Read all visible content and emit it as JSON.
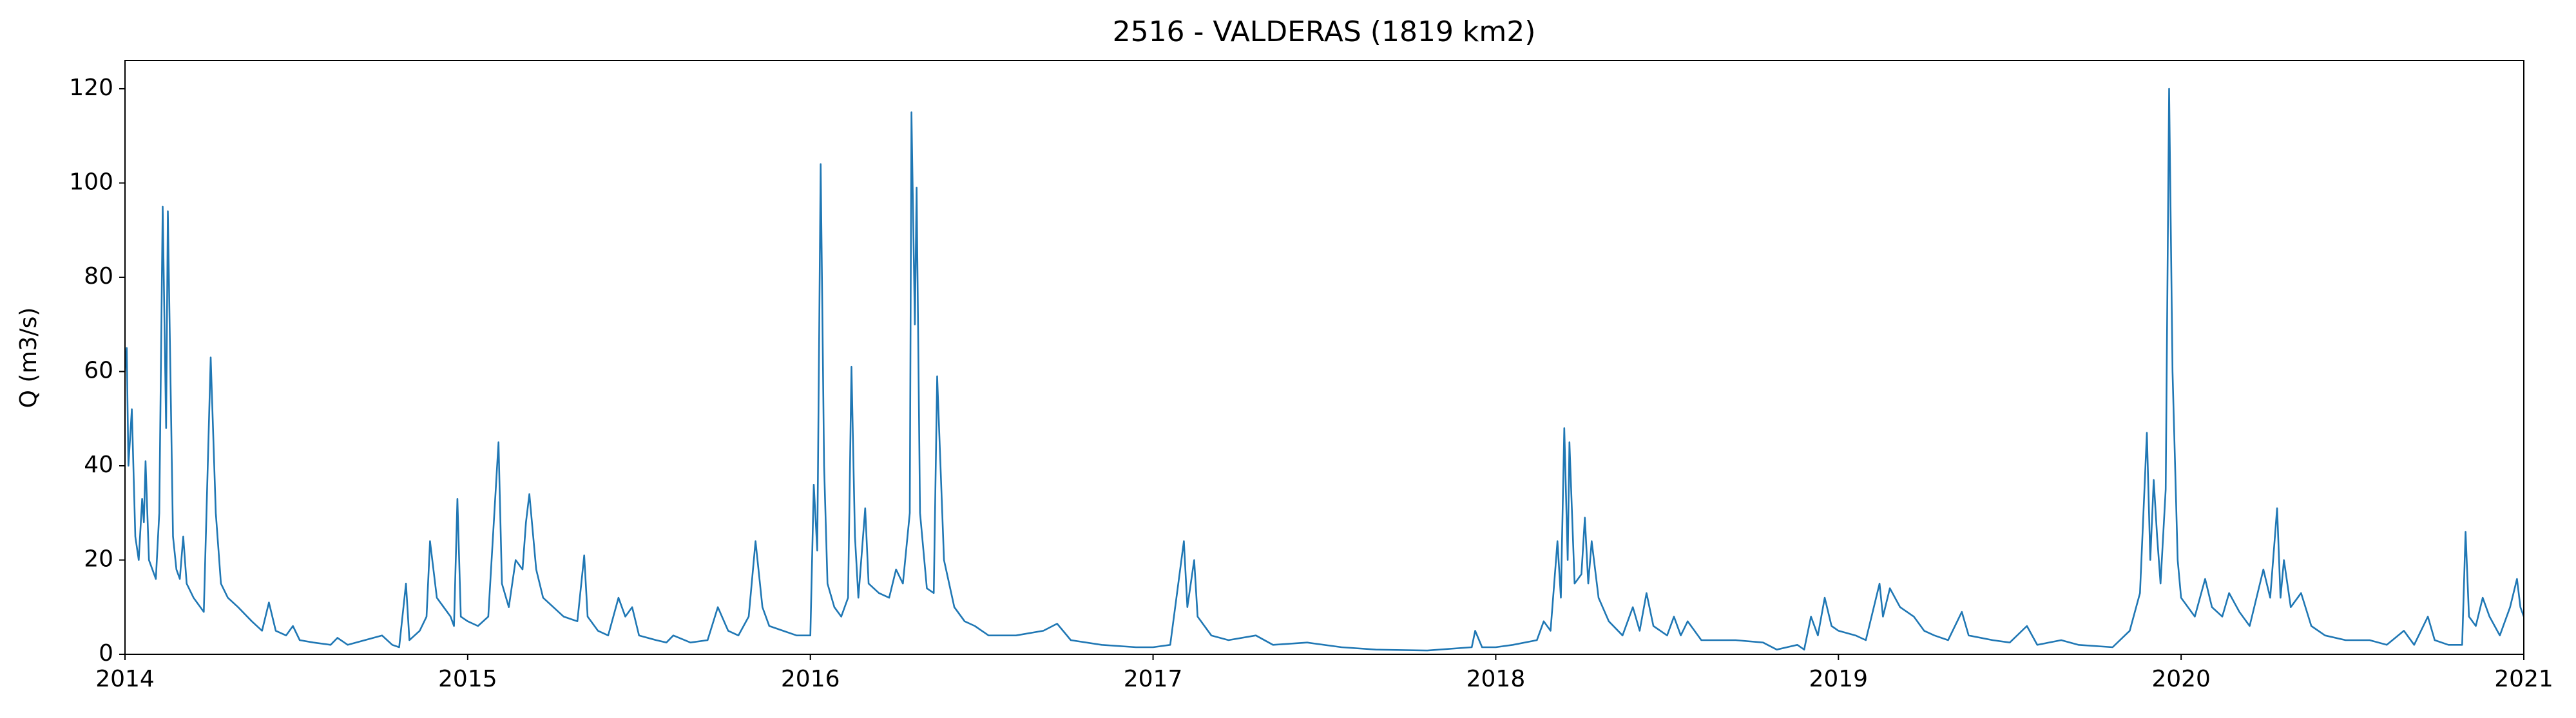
{
  "chart_data": {
    "type": "line",
    "title": "2516 - VALDERAS (1819 km2)",
    "ylabel": "Q (m3/s)",
    "color": "#1f77b4",
    "xlim": [
      2014,
      2021
    ],
    "xticks": [
      2014,
      2015,
      2016,
      2017,
      2018,
      2019,
      2020,
      2021
    ],
    "ylim": [
      0,
      126
    ],
    "yticks": [
      0,
      20,
      40,
      60,
      80,
      100,
      120
    ],
    "x": [
      2014,
      2014.005,
      2014.01,
      2014.02,
      2014.03,
      2014.04,
      2014.05,
      2014.055,
      2014.06,
      2014.07,
      2014.08,
      2014.09,
      2014.1,
      2014.11,
      2014.12,
      2014.125,
      2014.14,
      2014.15,
      2014.16,
      2014.17,
      2014.18,
      2014.2,
      2014.23,
      2014.25,
      2014.265,
      2014.28,
      2014.3,
      2014.33,
      2014.37,
      2014.4,
      2014.42,
      2014.44,
      2014.47,
      2014.49,
      2014.51,
      2014.55,
      2014.6,
      2014.62,
      2014.65,
      2014.7,
      2014.75,
      2014.78,
      2014.8,
      2014.82,
      2014.83,
      2014.86,
      2014.88,
      2014.89,
      2014.91,
      2014.93,
      2014.95,
      2014.96,
      2014.97,
      2014.98,
      2015,
      2015.03,
      2015.06,
      2015.09,
      2015.1,
      2015.12,
      2015.14,
      2015.16,
      2015.17,
      2015.18,
      2015.2,
      2015.22,
      2015.25,
      2015.28,
      2015.32,
      2015.34,
      2015.35,
      2015.38,
      2015.41,
      2015.44,
      2015.46,
      2015.48,
      2015.5,
      2015.55,
      2015.58,
      2015.6,
      2015.65,
      2015.7,
      2015.73,
      2015.76,
      2015.79,
      2015.82,
      2015.84,
      2015.86,
      2015.88,
      2015.92,
      2015.96,
      2016,
      2016.01,
      2016.02,
      2016.03,
      2016.04,
      2016.05,
      2016.07,
      2016.09,
      2016.11,
      2016.12,
      2016.13,
      2016.14,
      2016.16,
      2016.17,
      2016.2,
      2016.23,
      2016.25,
      2016.27,
      2016.29,
      2016.295,
      2016.305,
      2016.31,
      2016.32,
      2016.34,
      2016.36,
      2016.37,
      2016.39,
      2016.42,
      2016.45,
      2016.48,
      2016.52,
      2016.6,
      2016.68,
      2016.72,
      2016.76,
      2016.85,
      2016.95,
      2017,
      2017.05,
      2017.09,
      2017.1,
      2017.12,
      2017.13,
      2017.17,
      2017.22,
      2017.3,
      2017.35,
      2017.45,
      2017.55,
      2017.65,
      2017.8,
      2017.93,
      2017.94,
      2017.96,
      2018,
      2018.05,
      2018.12,
      2018.14,
      2018.16,
      2018.18,
      2018.19,
      2018.2,
      2018.21,
      2018.215,
      2018.23,
      2018.25,
      2018.26,
      2018.27,
      2018.28,
      2018.3,
      2018.33,
      2018.37,
      2018.4,
      2018.42,
      2018.44,
      2018.46,
      2018.5,
      2018.52,
      2018.54,
      2018.56,
      2018.6,
      2018.7,
      2018.78,
      2018.82,
      2018.85,
      2018.88,
      2018.9,
      2018.92,
      2018.94,
      2018.96,
      2018.98,
      2019,
      2019.05,
      2019.08,
      2019.12,
      2019.13,
      2019.15,
      2019.18,
      2019.22,
      2019.25,
      2019.28,
      2019.32,
      2019.36,
      2019.38,
      2019.45,
      2019.5,
      2019.55,
      2019.58,
      2019.65,
      2019.7,
      2019.8,
      2019.85,
      2019.88,
      2019.9,
      2019.91,
      2019.92,
      2019.93,
      2019.94,
      2019.955,
      2019.965,
      2019.975,
      2019.99,
      2020,
      2020.04,
      2020.07,
      2020.09,
      2020.12,
      2020.14,
      2020.17,
      2020.2,
      2020.24,
      2020.26,
      2020.28,
      2020.29,
      2020.3,
      2020.32,
      2020.35,
      2020.38,
      2020.42,
      2020.48,
      2020.55,
      2020.6,
      2020.65,
      2020.68,
      2020.72,
      2020.74,
      2020.78,
      2020.82,
      2020.83,
      2020.84,
      2020.86,
      2020.88,
      2020.9,
      2020.93,
      2020.96,
      2020.98,
      2020.99,
      2021
    ],
    "values": [
      60,
      65,
      40,
      52,
      25,
      20,
      33,
      28,
      41,
      20,
      18,
      16,
      30,
      95,
      48,
      94,
      25,
      18,
      16,
      25,
      15,
      12,
      9,
      63,
      30,
      15,
      12,
      10,
      7,
      5,
      11,
      5,
      4,
      6,
      3,
      2.5,
      2,
      3.5,
      2,
      3,
      4,
      2,
      1.5,
      15,
      3,
      5,
      8,
      24,
      12,
      10,
      8,
      6,
      33,
      8,
      7,
      6,
      8,
      45,
      15,
      10,
      20,
      18,
      28,
      34,
      18,
      12,
      10,
      8,
      7,
      21,
      8,
      5,
      4,
      12,
      8,
      10,
      4,
      3,
      2.5,
      4,
      2.5,
      3,
      10,
      5,
      4,
      8,
      24,
      10,
      6,
      5,
      4,
      4,
      36,
      22,
      104,
      40,
      15,
      10,
      8,
      12,
      61,
      25,
      12,
      31,
      15,
      13,
      12,
      18,
      15,
      30,
      115,
      70,
      99,
      30,
      14,
      13,
      59,
      20,
      10,
      7,
      6,
      4,
      4,
      5,
      6.5,
      3,
      2,
      1.5,
      1.5,
      2,
      24,
      10,
      20,
      8,
      4,
      3,
      4,
      2,
      2.5,
      1.5,
      1,
      0.8,
      1.5,
      5,
      1.5,
      1.5,
      2,
      3,
      7,
      5,
      24,
      12,
      48,
      20,
      45,
      15,
      17,
      29,
      15,
      24,
      12,
      7,
      4,
      10,
      5,
      13,
      6,
      4,
      8,
      4,
      7,
      3,
      3,
      2.5,
      1,
      1.5,
      2,
      1,
      8,
      4,
      12,
      6,
      5,
      4,
      3,
      15,
      8,
      14,
      10,
      8,
      5,
      4,
      3,
      9,
      4,
      3,
      2.5,
      6,
      2,
      3,
      2,
      1.5,
      5,
      13,
      47,
      20,
      37,
      25,
      15,
      35,
      120,
      60,
      20,
      12,
      8,
      16,
      10,
      8,
      13,
      9,
      6,
      18,
      12,
      31,
      12,
      20,
      10,
      13,
      6,
      4,
      3,
      3,
      2,
      5,
      2,
      8,
      3,
      2,
      2,
      26,
      8,
      6,
      12,
      8,
      4,
      10,
      16,
      10,
      8
    ]
  }
}
